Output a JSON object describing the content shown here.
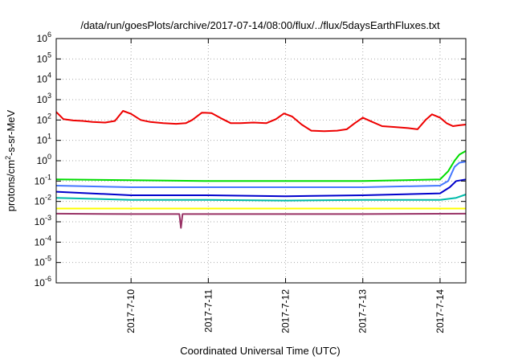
{
  "chart_data": {
    "type": "line",
    "title": "/data/run/goesPlots/archive/2017-07-14/08:00/flux/../flux/5daysEarthFluxes.txt",
    "xlabel": "Coordinated Universal Time (UTC)",
    "ylabel": {
      "prefix": "protons/cm",
      "sup": "2",
      "suffix": "-s-sr-MeV"
    },
    "x_range": [
      "2017-07-09 00:45",
      "2017-07-14 08:00"
    ],
    "y_scale": "log",
    "ylim": [
      1e-06,
      1000000.0
    ],
    "grid": true,
    "y_ticks": [
      {
        "value": 1e-06,
        "base": "10",
        "exp": "-6"
      },
      {
        "value": 1e-05,
        "base": "10",
        "exp": "-5"
      },
      {
        "value": 0.0001,
        "base": "10",
        "exp": "-4"
      },
      {
        "value": 0.001,
        "base": "10",
        "exp": "-3"
      },
      {
        "value": 0.01,
        "base": "10",
        "exp": "-2"
      },
      {
        "value": 0.1,
        "base": "10",
        "exp": "-1"
      },
      {
        "value": 1.0,
        "base": "10",
        "exp": "0"
      },
      {
        "value": 10.0,
        "base": "10",
        "exp": "1"
      },
      {
        "value": 100.0,
        "base": "10",
        "exp": "2"
      },
      {
        "value": 1000.0,
        "base": "10",
        "exp": "3"
      },
      {
        "value": 10000.0,
        "base": "10",
        "exp": "4"
      },
      {
        "value": 100000.0,
        "base": "10",
        "exp": "5"
      },
      {
        "value": 1000000.0,
        "base": "10",
        "exp": "6"
      }
    ],
    "x_ticks": [
      {
        "value": "2017-07-10 00:00",
        "label": "2017-7-10"
      },
      {
        "value": "2017-07-11 00:00",
        "label": "2017-7-11"
      },
      {
        "value": "2017-07-12 00:00",
        "label": "2017-7-12"
      },
      {
        "value": "2017-07-13 00:00",
        "label": "2017-7-13"
      },
      {
        "value": "2017-07-14 00:00",
        "label": "2017-7-14"
      }
    ],
    "series": [
      {
        "color": "#ee0000",
        "points": [
          [
            "2017-07-09 00:45",
            250
          ],
          [
            "2017-07-09 03:00",
            110
          ],
          [
            "2017-07-09 06:00",
            95
          ],
          [
            "2017-07-09 09:00",
            90
          ],
          [
            "2017-07-09 12:00",
            80
          ],
          [
            "2017-07-09 16:00",
            75
          ],
          [
            "2017-07-09 19:00",
            90
          ],
          [
            "2017-07-09 21:30",
            280
          ],
          [
            "2017-07-10 00:00",
            200
          ],
          [
            "2017-07-10 03:00",
            100
          ],
          [
            "2017-07-10 06:00",
            80
          ],
          [
            "2017-07-10 10:00",
            70
          ],
          [
            "2017-07-10 14:00",
            65
          ],
          [
            "2017-07-10 17:00",
            70
          ],
          [
            "2017-07-10 19:00",
            100
          ],
          [
            "2017-07-10 22:00",
            230
          ],
          [
            "2017-07-11 01:00",
            220
          ],
          [
            "2017-07-11 04:00",
            120
          ],
          [
            "2017-07-11 07:00",
            70
          ],
          [
            "2017-07-11 10:00",
            70
          ],
          [
            "2017-07-11 14:00",
            75
          ],
          [
            "2017-07-11 18:00",
            70
          ],
          [
            "2017-07-11 21:00",
            110
          ],
          [
            "2017-07-11 23:30",
            210
          ],
          [
            "2017-07-12 02:00",
            150
          ],
          [
            "2017-07-12 05:00",
            60
          ],
          [
            "2017-07-12 08:00",
            30
          ],
          [
            "2017-07-12 12:00",
            28
          ],
          [
            "2017-07-12 16:00",
            30
          ],
          [
            "2017-07-12 19:00",
            35
          ],
          [
            "2017-07-12 21:30",
            70
          ],
          [
            "2017-07-13 00:00",
            130
          ],
          [
            "2017-07-13 03:00",
            80
          ],
          [
            "2017-07-13 06:00",
            50
          ],
          [
            "2017-07-13 10:00",
            45
          ],
          [
            "2017-07-13 14:00",
            40
          ],
          [
            "2017-07-13 17:00",
            35
          ],
          [
            "2017-07-13 19:30",
            100
          ],
          [
            "2017-07-13 21:30",
            190
          ],
          [
            "2017-07-14 00:00",
            130
          ],
          [
            "2017-07-14 02:00",
            70
          ],
          [
            "2017-07-14 04:00",
            50
          ],
          [
            "2017-07-14 06:00",
            55
          ],
          [
            "2017-07-14 08:00",
            60
          ]
        ]
      },
      {
        "color": "#00dd00",
        "points": [
          [
            "2017-07-09 00:45",
            0.12
          ],
          [
            "2017-07-10 00:00",
            0.11
          ],
          [
            "2017-07-11 00:00",
            0.1
          ],
          [
            "2017-07-12 00:00",
            0.1
          ],
          [
            "2017-07-13 00:00",
            0.1
          ],
          [
            "2017-07-14 00:00",
            0.12
          ],
          [
            "2017-07-14 02:30",
            0.3
          ],
          [
            "2017-07-14 04:30",
            1.0
          ],
          [
            "2017-07-14 06:00",
            2.0
          ],
          [
            "2017-07-14 08:00",
            3.0
          ]
        ]
      },
      {
        "color": "#4477ff",
        "points": [
          [
            "2017-07-09 00:45",
            0.06
          ],
          [
            "2017-07-10 00:00",
            0.05
          ],
          [
            "2017-07-11 00:00",
            0.05
          ],
          [
            "2017-07-12 00:00",
            0.05
          ],
          [
            "2017-07-13 00:00",
            0.05
          ],
          [
            "2017-07-14 00:00",
            0.06
          ],
          [
            "2017-07-14 02:30",
            0.1
          ],
          [
            "2017-07-14 04:30",
            0.5
          ],
          [
            "2017-07-14 06:00",
            0.8
          ],
          [
            "2017-07-14 08:00",
            0.9
          ]
        ]
      },
      {
        "color": "#0000cc",
        "points": [
          [
            "2017-07-09 00:45",
            0.03
          ],
          [
            "2017-07-10 00:00",
            0.02
          ],
          [
            "2017-07-11 00:00",
            0.02
          ],
          [
            "2017-07-12 00:00",
            0.018
          ],
          [
            "2017-07-13 00:00",
            0.02
          ],
          [
            "2017-07-14 00:00",
            0.025
          ],
          [
            "2017-07-14 03:00",
            0.05
          ],
          [
            "2017-07-14 05:00",
            0.1
          ],
          [
            "2017-07-14 08:00",
            0.12
          ]
        ]
      },
      {
        "color": "#00bbaa",
        "points": [
          [
            "2017-07-09 00:45",
            0.015
          ],
          [
            "2017-07-10 00:00",
            0.012
          ],
          [
            "2017-07-11 00:00",
            0.012
          ],
          [
            "2017-07-12 00:00",
            0.011
          ],
          [
            "2017-07-13 00:00",
            0.012
          ],
          [
            "2017-07-14 00:00",
            0.012
          ],
          [
            "2017-07-14 05:00",
            0.015
          ],
          [
            "2017-07-14 08:00",
            0.022
          ]
        ]
      },
      {
        "color": "#ffff00",
        "points": [
          [
            "2017-07-09 00:45",
            0.0045
          ],
          [
            "2017-07-11 00:00",
            0.0045
          ],
          [
            "2017-07-13 00:00",
            0.0045
          ],
          [
            "2017-07-14 08:00",
            0.0045
          ]
        ]
      },
      {
        "color": "#993366",
        "points": [
          [
            "2017-07-09 00:45",
            0.0025
          ],
          [
            "2017-07-10 00:00",
            0.0024
          ],
          [
            "2017-07-10 15:00",
            0.0024
          ],
          [
            "2017-07-10 15:30",
            0.0005
          ],
          [
            "2017-07-10 16:00",
            0.0024
          ],
          [
            "2017-07-12 00:00",
            0.0024
          ],
          [
            "2017-07-13 00:00",
            0.0024
          ],
          [
            "2017-07-14 08:00",
            0.0025
          ]
        ]
      }
    ]
  }
}
